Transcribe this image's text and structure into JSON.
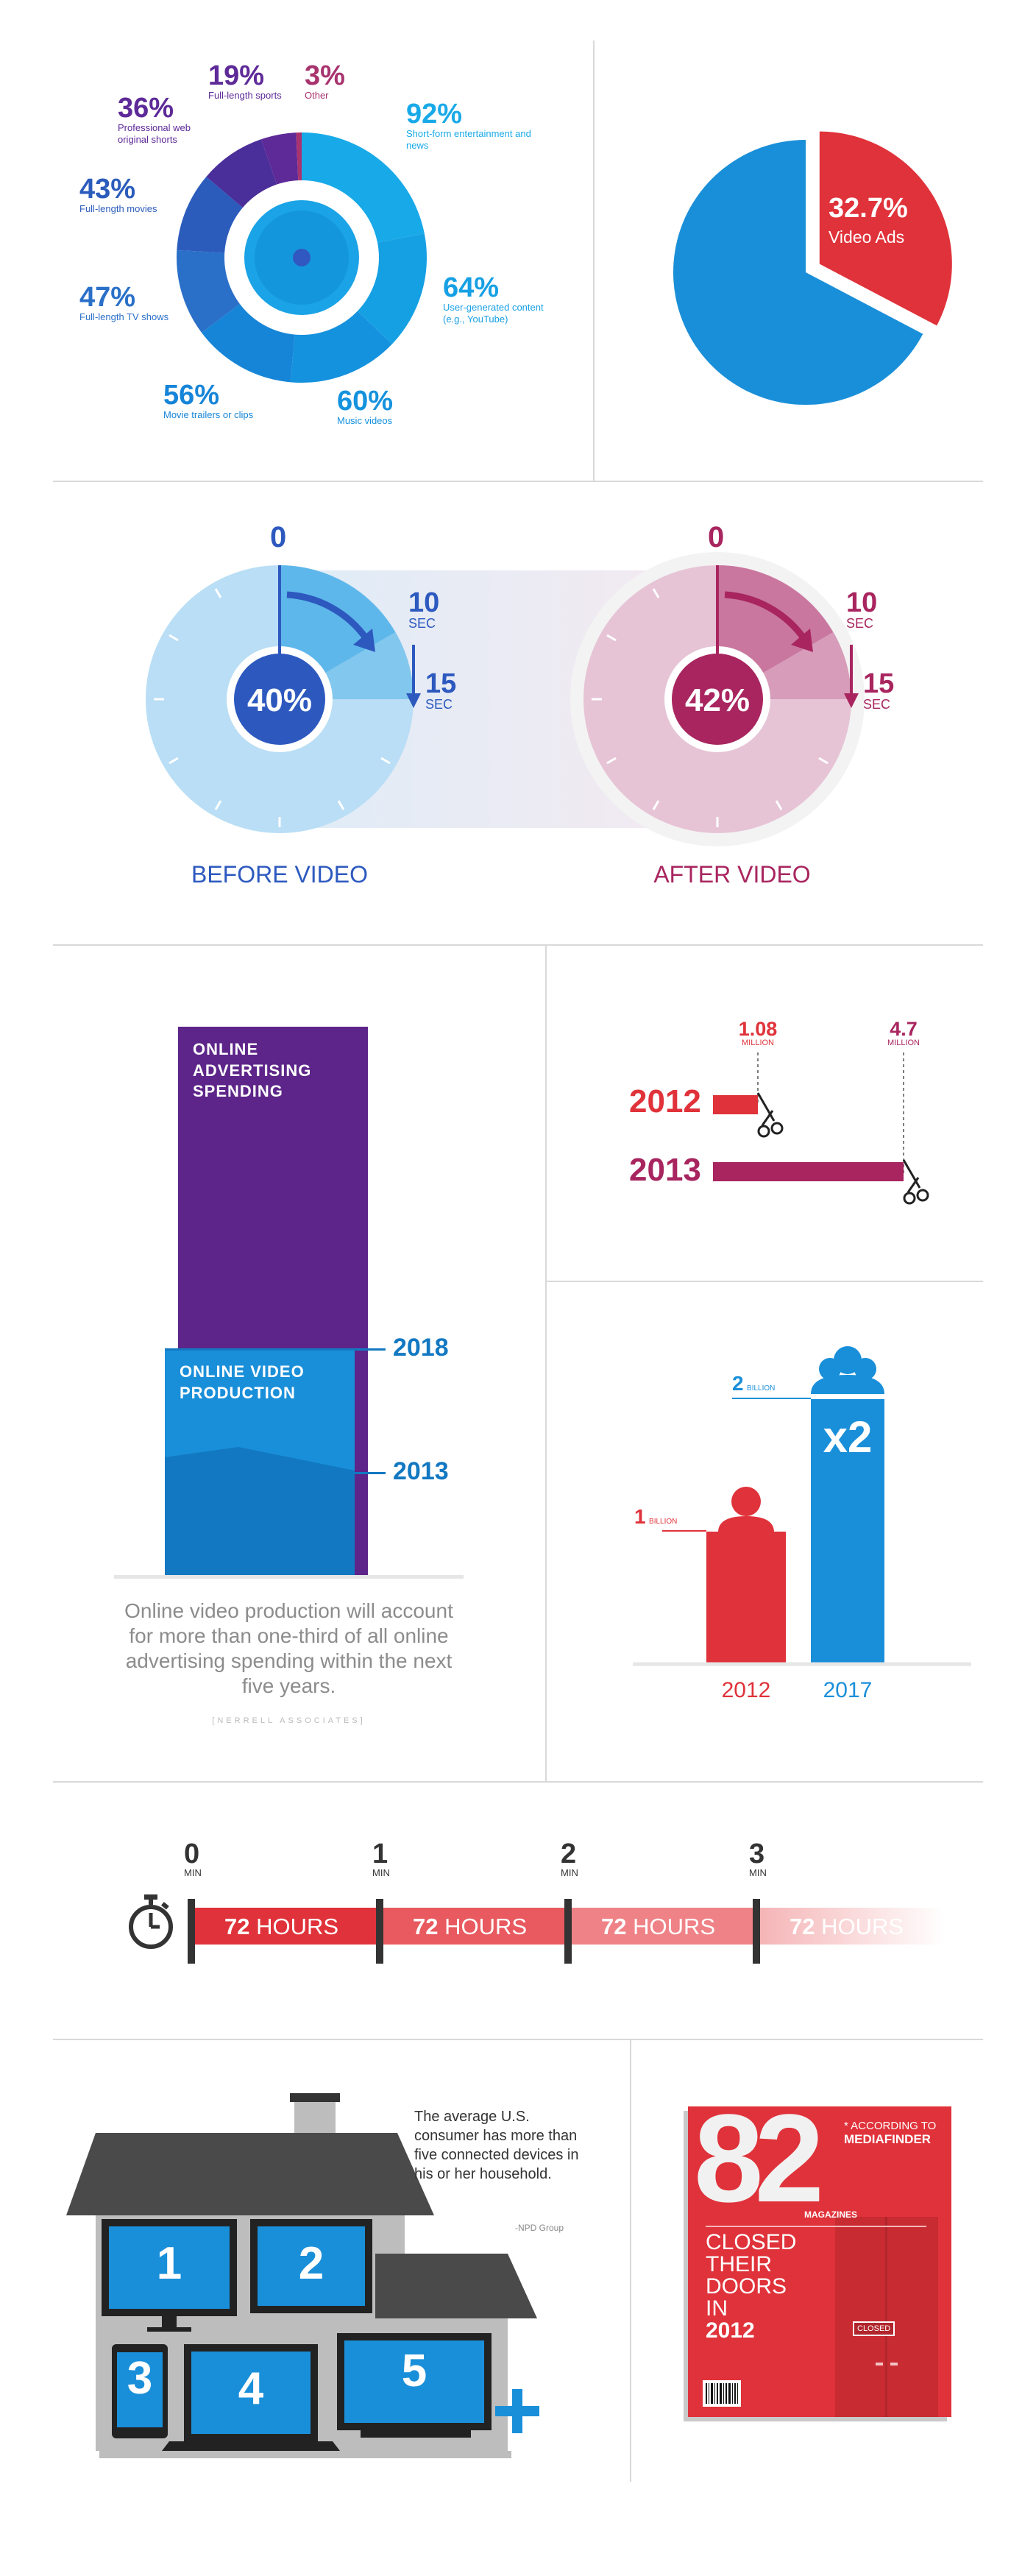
{
  "section1": {
    "donut": {
      "segments": [
        {
          "value": "92%",
          "label": "Short-form entertainment and news",
          "color": "#18a9e8"
        },
        {
          "value": "64%",
          "label": "User-generated content (e.g., YouTube)",
          "color": "#16a0e4"
        },
        {
          "value": "60%",
          "label": "Music videos",
          "color": "#1592de"
        },
        {
          "value": "56%",
          "label": "Movie trailers or clips",
          "color": "#1685d8"
        },
        {
          "value": "47%",
          "label": "Full-length TV shows",
          "color": "#2a70c8"
        },
        {
          "value": "43%",
          "label": "Full-length movies",
          "color": "#2b5cbc"
        },
        {
          "value": "36%",
          "label": "Professional web original shorts",
          "color": "#4a2e99"
        },
        {
          "value": "19%",
          "label": "Full-length sports",
          "color": "#5e2a98"
        },
        {
          "value": "3%",
          "label": "Other",
          "color": "#a8336e"
        }
      ]
    },
    "pie": {
      "value": "32.7%",
      "label": "Video Ads",
      "fraction": 0.327,
      "colors": {
        "main": "#1a8fd9",
        "slice": "#e0323a"
      }
    }
  },
  "section2": {
    "before": {
      "start": "0",
      "t1": "10",
      "t2": "15",
      "unit": "SEC",
      "center": "40%",
      "caption": "BEFORE VIDEO"
    },
    "after": {
      "start": "0",
      "t1": "10",
      "t2": "15",
      "unit": "SEC",
      "center": "42%",
      "caption": "AFTER VIDEO"
    },
    "colors": {
      "blue": "#2d59bf",
      "magenta": "#a8255f"
    }
  },
  "section3": {
    "bars": {
      "tall_label": "ONLINE ADVERTISING SPENDING",
      "short_label": "ONLINE VIDEO PRODUCTION",
      "year_top": "2018",
      "year_bottom": "2013",
      "caption": "Online video production will account for more than one-third of all online advertising spending within the next five years.",
      "source": "[NERRELL ASSOCIATES]"
    },
    "scissors": {
      "rows": [
        {
          "year": "2012",
          "value": "1.08",
          "unit": "MILLION",
          "color": "#e0323a"
        },
        {
          "year": "2013",
          "value": "4.7",
          "unit": "MILLION",
          "color": "#a8255f"
        }
      ]
    },
    "people": {
      "left": {
        "value": "1",
        "unit": "BILLION",
        "year": "2012"
      },
      "right": {
        "value": "2",
        "unit": "BILLION",
        "year": "2017",
        "multiplier": "x2"
      }
    }
  },
  "section4": {
    "timeline": {
      "ticks": [
        {
          "num": "0",
          "unit": "MIN"
        },
        {
          "num": "1",
          "unit": "MIN"
        },
        {
          "num": "2",
          "unit": "MIN"
        },
        {
          "num": "3",
          "unit": "MIN"
        }
      ],
      "segments": [
        {
          "num": "72",
          "unit": "HOURS"
        },
        {
          "num": "72",
          "unit": "HOURS"
        },
        {
          "num": "72",
          "unit": "HOURS"
        },
        {
          "num": "72",
          "unit": "HOURS"
        }
      ]
    }
  },
  "section5": {
    "house": {
      "devices": [
        "1",
        "2",
        "3",
        "4",
        "5"
      ],
      "text": "The average U.S. consumer has more than five connected devices in his or her household.",
      "source": "-NPD Group"
    },
    "magazine": {
      "number": "82",
      "sub": "MAGAZINES",
      "note": "* ACCORDING TO",
      "brand": "MEDIAFINDER",
      "lines": [
        "CLOSED",
        "THEIR",
        "DOORS",
        "IN"
      ],
      "year": "2012",
      "sign": "CLOSED"
    }
  },
  "chart_data": [
    {
      "type": "pie",
      "title": "",
      "categories": [
        "Short-form entertainment and news",
        "User-generated content (e.g., YouTube)",
        "Music videos",
        "Movie trailers or clips",
        "Full-length TV shows",
        "Full-length movies",
        "Professional web original shorts",
        "Full-length sports",
        "Other"
      ],
      "values": [
        92,
        64,
        60,
        56,
        47,
        43,
        36,
        19,
        3
      ]
    },
    {
      "type": "pie",
      "categories": [
        "Video Ads",
        ""
      ],
      "values": [
        32.7,
        67.3
      ]
    },
    {
      "type": "pie",
      "categories": [
        "BEFORE VIDEO",
        "AFTER VIDEO"
      ],
      "values": [
        40,
        42
      ]
    },
    {
      "type": "bar",
      "categories": [
        "2012",
        "2013"
      ],
      "values": [
        1.08,
        4.7
      ],
      "ylabel": "MILLION"
    },
    {
      "type": "bar",
      "categories": [
        "2012",
        "2017"
      ],
      "values": [
        1,
        2
      ],
      "ylabel": "BILLION"
    }
  ]
}
